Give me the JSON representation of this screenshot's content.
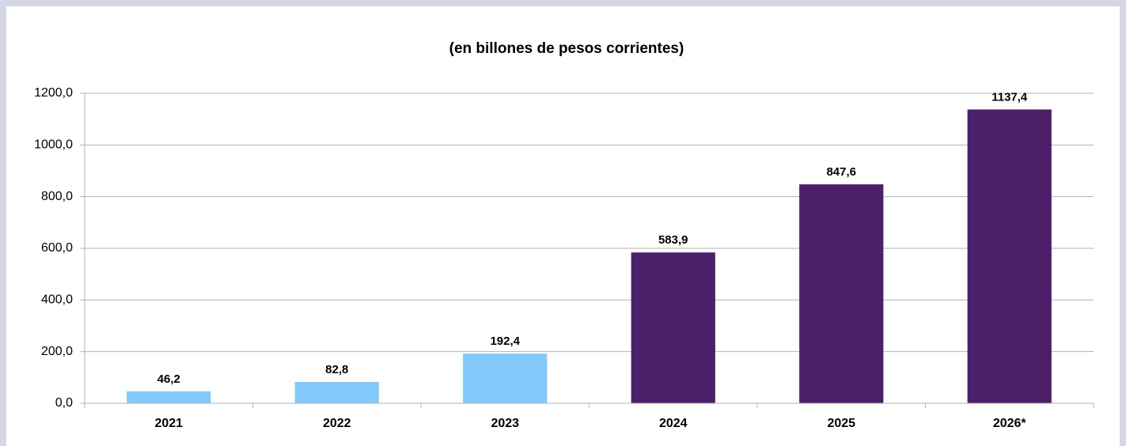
{
  "chart_data": {
    "type": "bar",
    "title": "(en billones de pesos corrientes)",
    "categories": [
      "2021",
      "2022",
      "2023",
      "2024",
      "2025",
      "2026*"
    ],
    "values": [
      46.2,
      82.8,
      192.4,
      583.9,
      847.6,
      1137.4
    ],
    "value_labels": [
      "46,2",
      "82,8",
      "192,4",
      "583,9",
      "847,6",
      "1137,4"
    ],
    "colors": [
      "#82c9fb",
      "#82c9fb",
      "#82c9fb",
      "#4c1f6a",
      "#4c1f6a",
      "#4c1f6a"
    ],
    "ylim": [
      0,
      1200
    ],
    "yticks": [
      {
        "value": 0,
        "label": "0,0"
      },
      {
        "value": 200,
        "label": "200,0"
      },
      {
        "value": 400,
        "label": "400,0"
      },
      {
        "value": 600,
        "label": "600,0"
      },
      {
        "value": 800,
        "label": "800,0"
      },
      {
        "value": 1000,
        "label": "1000,0"
      },
      {
        "value": 1200,
        "label": "1200,0"
      }
    ],
    "grid": true
  }
}
